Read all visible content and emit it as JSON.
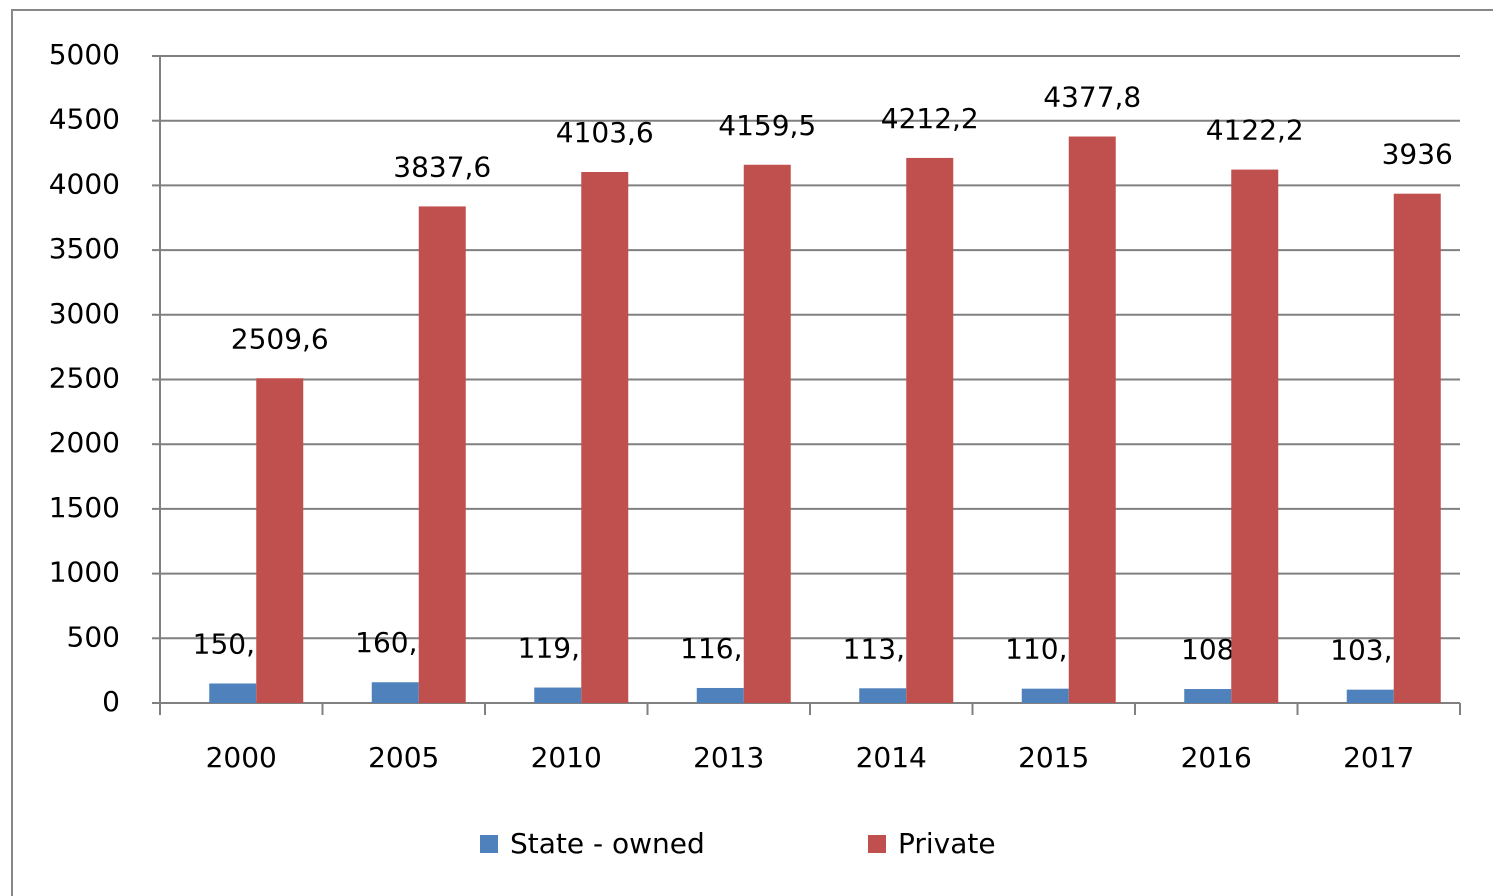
{
  "chart_data": {
    "type": "bar",
    "categories": [
      "2000",
      "2005",
      "2010",
      "2013",
      "2014",
      "2015",
      "2016",
      "2017"
    ],
    "series": [
      {
        "name": "State - owned",
        "color": "#4f81bd",
        "values": [
          150.8,
          160.4,
          119.4,
          116.1,
          113.7,
          110.7,
          108,
          103.1
        ],
        "value_labels": [
          "150,8",
          "160,4",
          "119,4",
          "116,1",
          "113,7",
          "110,7",
          "108",
          "103,1"
        ]
      },
      {
        "name": "Private",
        "color": "#c0504d",
        "values": [
          2509.6,
          3837.6,
          4103.6,
          4159.5,
          4212.2,
          4377.8,
          4122.2,
          3936
        ],
        "value_labels": [
          "2509,6",
          "3837,6",
          "4103,6",
          "4159,5",
          "4212,2",
          "4377,8",
          "4122,2",
          "3936"
        ]
      }
    ],
    "ylim": [
      0,
      5000
    ],
    "yticks": [
      0,
      500,
      1000,
      1500,
      2000,
      2500,
      3000,
      3500,
      4000,
      4500,
      5000
    ],
    "grid": true,
    "legend": "bottom"
  }
}
